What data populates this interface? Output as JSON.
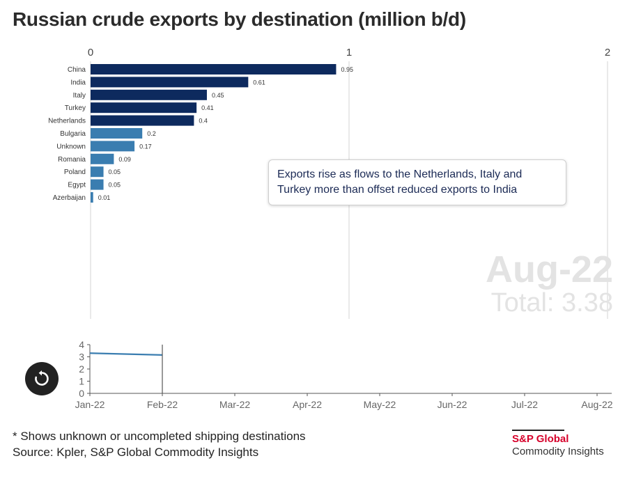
{
  "title": "Russian crude exports by destination (million b/d)",
  "chart_data": [
    {
      "type": "bar",
      "orientation": "horizontal",
      "categories": [
        "China",
        "India",
        "Italy",
        "Turkey",
        "Netherlands",
        "Bulgaria",
        "Unknown",
        "Romania",
        "Poland",
        "Egypt",
        "Azerbaijan"
      ],
      "values": [
        0.95,
        0.61,
        0.45,
        0.41,
        0.4,
        0.2,
        0.17,
        0.09,
        0.05,
        0.05,
        0.01
      ],
      "value_labels": [
        "0.95",
        "0.61",
        "0.45",
        "0.41",
        "0.4",
        "0.2",
        "0.17",
        "0.09",
        "0.05",
        "0.05",
        "0.01"
      ],
      "bar_colors": [
        "#0d2a5e",
        "#0d2a5e",
        "#0d2a5e",
        "#0d2a5e",
        "#0d2a5e",
        "#3a7db0",
        "#3a7db0",
        "#3a7db0",
        "#3a7db0",
        "#3a7db0",
        "#3a7db0"
      ],
      "xlim": [
        0,
        2
      ],
      "x_ticks": [
        "0",
        "1",
        "2"
      ],
      "grid": true,
      "xlabel": "",
      "ylabel": ""
    },
    {
      "type": "line",
      "x": [
        "Jan-22",
        "Feb-22"
      ],
      "values": [
        3.3,
        3.15
      ],
      "x_ticks": [
        "Jan-22",
        "Feb-22",
        "Mar-22",
        "Apr-22",
        "May-22",
        "Jun-22",
        "Jul-22",
        "Aug-22"
      ],
      "y_ticks": [
        "0",
        "1",
        "2",
        "3",
        "4"
      ],
      "ylim": [
        0,
        4
      ],
      "color": "#3a7db0",
      "grid": false
    }
  ],
  "callout": "Exports rise as flows to the Netherlands, Italy and Turkey more than offset reduced exports to India",
  "current": {
    "date": "Aug-22",
    "total": "Total: 3.38"
  },
  "footnote": {
    "line1": "* Shows unknown or uncompleted shipping destinations",
    "line2": "Source: Kpler, S&P Global Commodity Insights"
  },
  "logo": {
    "brand": "S&P Global",
    "sub": "Commodity Insights"
  },
  "icons": {
    "replay": "replay-icon"
  }
}
